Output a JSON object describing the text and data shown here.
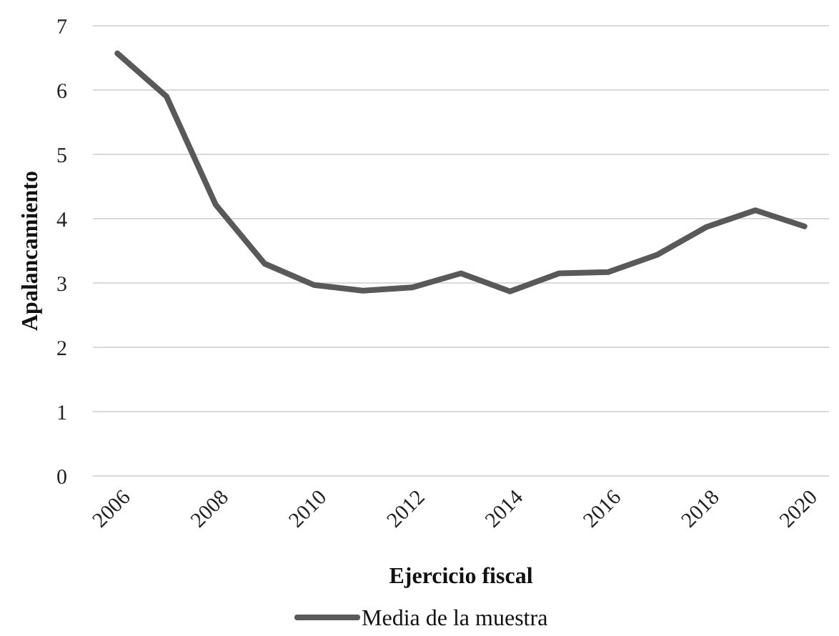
{
  "chart_data": {
    "type": "line",
    "xlabel": "Ejercicio fiscal",
    "ylabel": "Apalancamiento",
    "categories": [
      "2006",
      null,
      "2008",
      null,
      "2010",
      null,
      "2012",
      null,
      "2014",
      null,
      "2016",
      null,
      "2018",
      null,
      "2020"
    ],
    "series": [
      {
        "name": "Media de la muestra",
        "color": "#595959",
        "values": [
          6.57,
          5.9,
          4.22,
          3.3,
          2.97,
          2.88,
          2.93,
          3.15,
          2.87,
          3.15,
          3.17,
          3.44,
          3.87,
          4.13,
          3.88
        ]
      }
    ],
    "ylim": [
      0,
      7
    ],
    "yticks": [
      0,
      1,
      2,
      3,
      4,
      5,
      6,
      7
    ],
    "grid": "y",
    "legend": "bottom",
    "marker": "none",
    "line_style": "solid"
  }
}
